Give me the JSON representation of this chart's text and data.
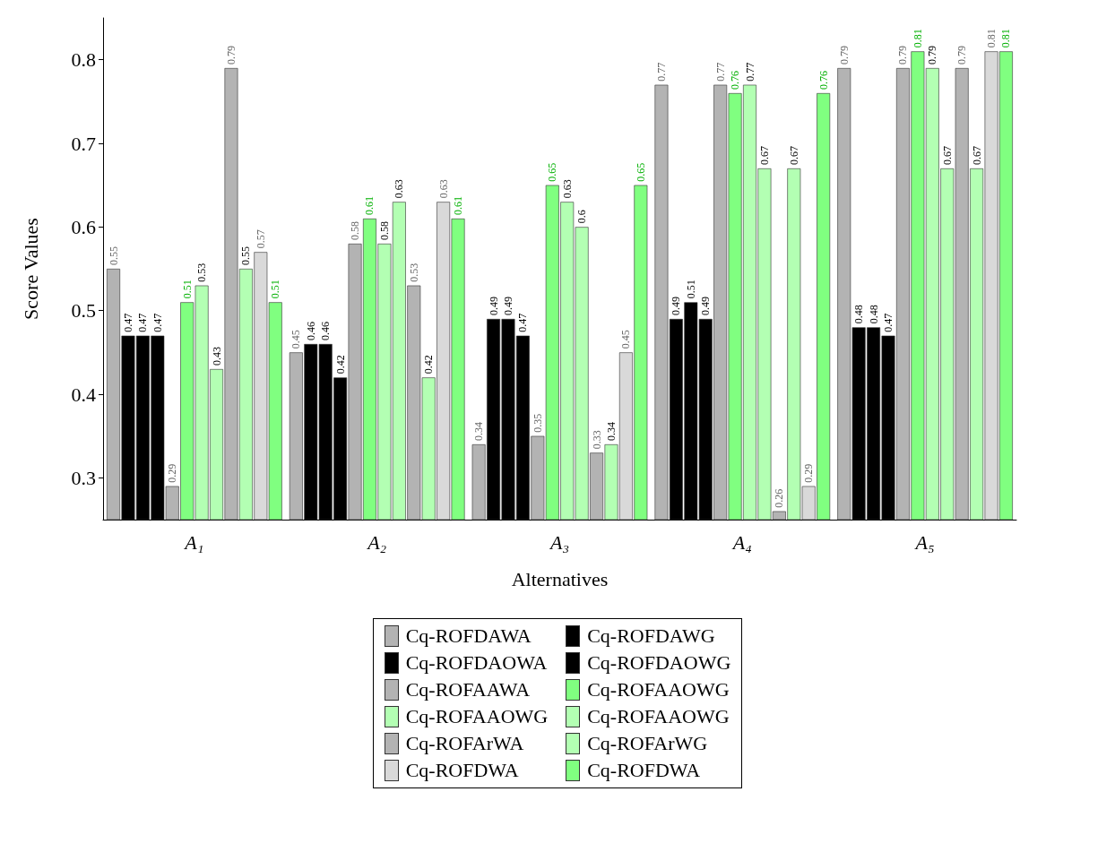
{
  "chart_data": {
    "type": "bar",
    "xlabel": "Alternatives",
    "ylabel": "Score Values",
    "categories": [
      "A₁",
      "A₂",
      "A₃",
      "A₄",
      "A₅"
    ],
    "ylim": [
      0.25,
      0.85
    ],
    "yticks": [
      0.3,
      0.4,
      0.5,
      0.6,
      0.7,
      0.8
    ],
    "data_labels": true,
    "legend": "bottom",
    "grid": false,
    "series": [
      {
        "name": "Cq-ROFDAWA",
        "color": "#b3b3b3",
        "values": [
          0.55,
          0.45,
          0.34,
          0.77,
          0.79
        ]
      },
      {
        "name": "Cq-ROFDAWG",
        "color": "#000000",
        "values": [
          0.47,
          0.46,
          0.49,
          0.49,
          0.48
        ]
      },
      {
        "name": "Cq-ROFDAOWA",
        "color": "#000000",
        "values": [
          0.47,
          0.46,
          0.49,
          0.51,
          0.48
        ]
      },
      {
        "name": "Cq-ROFDAOWG",
        "color": "#000000",
        "values": [
          0.47,
          0.42,
          0.47,
          0.49,
          0.47
        ]
      },
      {
        "name": "Cq-ROFAAWA",
        "color": "#b3b3b3",
        "values": [
          0.29,
          0.58,
          0.35,
          0.77,
          0.79
        ]
      },
      {
        "name": "Cq-ROFAAOWG",
        "color": "#80ff80",
        "values": [
          0.51,
          0.61,
          0.65,
          0.76,
          0.81
        ]
      },
      {
        "name": "Cq-ROFAAOWG",
        "color": "#b3ffb3",
        "values": [
          0.53,
          0.58,
          0.63,
          0.77,
          0.79
        ]
      },
      {
        "name": "Cq-ROFAAOWG",
        "color": "#b3ffb3",
        "values": [
          0.43,
          0.63,
          0.6,
          0.67,
          0.67
        ]
      },
      {
        "name": "Cq-ROFArWA",
        "color": "#b3b3b3",
        "values": [
          0.79,
          0.53,
          0.33,
          0.26,
          0.79
        ]
      },
      {
        "name": "Cq-ROFArWG",
        "color": "#b3ffb3",
        "values": [
          0.55,
          0.42,
          0.34,
          0.67,
          0.67
        ]
      },
      {
        "name": "Cq-ROFDWA",
        "color": "#d9d9d9",
        "values": [
          0.57,
          0.63,
          0.45,
          0.29,
          0.81
        ]
      },
      {
        "name": "Cq-ROFDWA",
        "color": "#80ff80",
        "values": [
          0.51,
          0.61,
          0.65,
          0.76,
          0.81
        ]
      }
    ]
  }
}
